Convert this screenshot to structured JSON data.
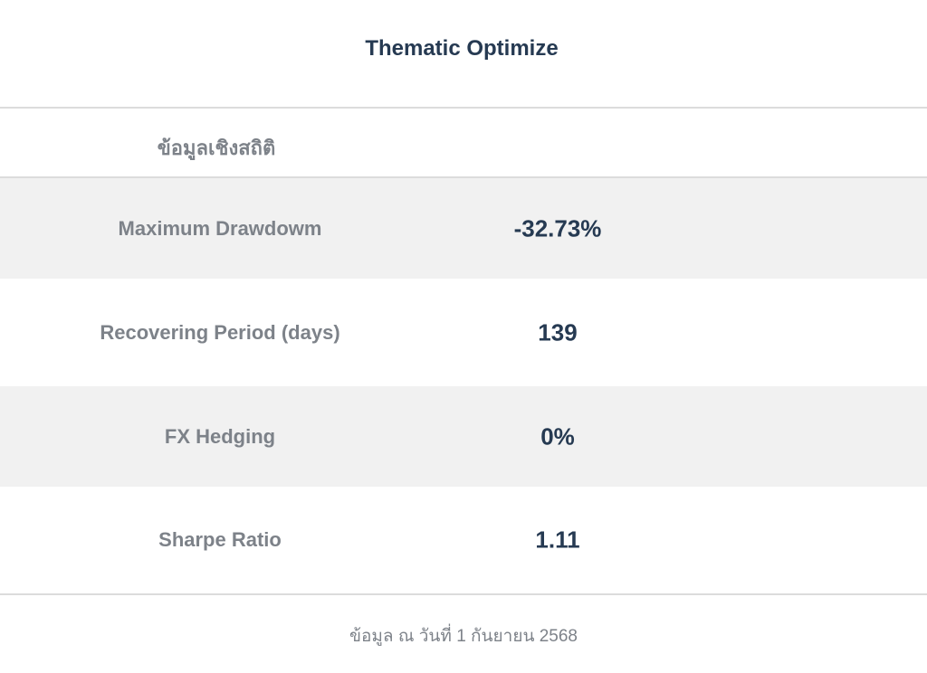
{
  "header": {
    "title": "Thematic Optimize"
  },
  "section": {
    "label": "ข้อมูลเชิงสถิติ"
  },
  "stats": {
    "rows": [
      {
        "label": "Maximum Drawdowm",
        "value": "-32.73%"
      },
      {
        "label": "Recovering Period (days)",
        "value": "139"
      },
      {
        "label": "FX Hedging",
        "value": "0%"
      },
      {
        "label": "Sharpe Ratio",
        "value": "1.11"
      }
    ]
  },
  "footer": {
    "note": "ข้อมูล ณ วันที่ 1 กันยายน 2568"
  },
  "colors": {
    "title": "#263a52",
    "label": "#7d8289",
    "row_shade": "#f1f1f1",
    "divider": "#dcdcdc"
  }
}
